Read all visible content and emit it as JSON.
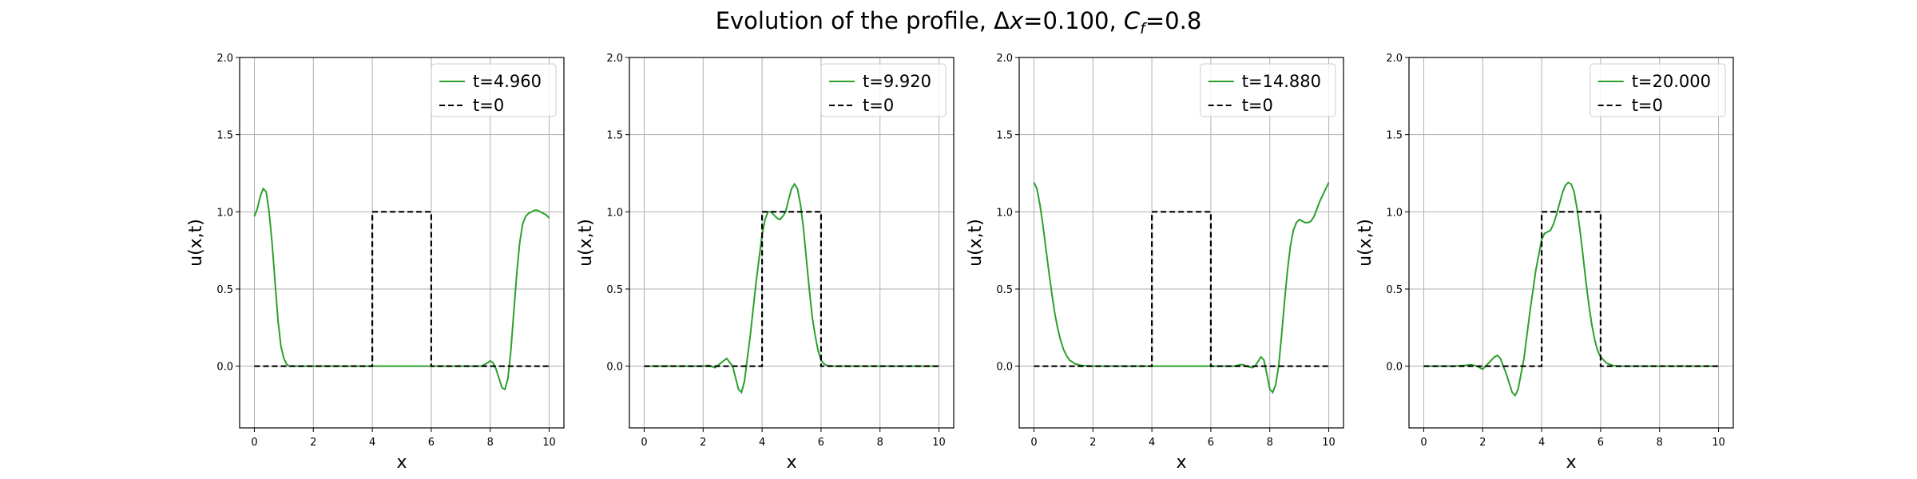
{
  "figure": {
    "suptitle_prefix": "Evolution of the profile, ",
    "dx_symbol": "Δ",
    "dx_var": "x",
    "dx_value": "=0.100, ",
    "cf_var": "C",
    "cf_sub": "f",
    "cf_value": "=0.8"
  },
  "chart_data": [
    {
      "type": "line",
      "xlabel": "x",
      "ylabel": "u(x,t)",
      "xlim": [
        -0.5,
        10.5
      ],
      "ylim": [
        -0.4,
        2.0
      ],
      "xticks": [
        0,
        2,
        4,
        6,
        8,
        10
      ],
      "xtick_labels": [
        "0",
        "2",
        "4",
        "6",
        "8",
        "10"
      ],
      "yticks": [
        0.0,
        0.5,
        1.0,
        1.5,
        2.0
      ],
      "ytick_labels": [
        "0.0",
        "0.5",
        "1.0",
        "1.5",
        "2.0"
      ],
      "grid": true,
      "legend_position": "top-right",
      "series": [
        {
          "name": "t=4.960",
          "color": "#2ca02c",
          "style": "solid",
          "x": [
            0,
            0.1,
            0.2,
            0.3,
            0.4,
            0.5,
            0.6,
            0.7,
            0.8,
            0.9,
            1.0,
            1.1,
            1.2,
            1.3,
            1.5,
            2.0,
            4.0,
            6.0,
            7.5,
            7.7,
            7.9,
            8.0,
            8.1,
            8.2,
            8.3,
            8.4,
            8.5,
            8.6,
            8.7,
            8.8,
            8.9,
            9.0,
            9.1,
            9.2,
            9.3,
            9.4,
            9.5,
            9.6,
            9.7,
            9.8,
            9.9,
            10.0
          ],
          "y": [
            0.97,
            1.02,
            1.1,
            1.15,
            1.13,
            1.0,
            0.8,
            0.55,
            0.3,
            0.13,
            0.05,
            0.01,
            0.0,
            0.0,
            0.0,
            0.0,
            0.0,
            0.0,
            0.0,
            0.0,
            0.02,
            0.035,
            0.02,
            -0.02,
            -0.08,
            -0.14,
            -0.15,
            -0.08,
            0.1,
            0.35,
            0.6,
            0.8,
            0.92,
            0.97,
            0.99,
            1.0,
            1.01,
            1.01,
            1.0,
            0.99,
            0.98,
            0.96
          ]
        },
        {
          "name": "t=0",
          "color": "#000000",
          "style": "dashed",
          "x": [
            0,
            4.0,
            4.0,
            6.0,
            6.0,
            10.0
          ],
          "y": [
            0,
            0,
            1,
            1,
            0,
            0
          ]
        }
      ]
    },
    {
      "type": "line",
      "xlabel": "x",
      "ylabel": "u(x,t)",
      "xlim": [
        -0.5,
        10.5
      ],
      "ylim": [
        -0.4,
        2.0
      ],
      "xticks": [
        0,
        2,
        4,
        6,
        8,
        10
      ],
      "xtick_labels": [
        "0",
        "2",
        "4",
        "6",
        "8",
        "10"
      ],
      "yticks": [
        0.0,
        0.5,
        1.0,
        1.5,
        2.0
      ],
      "ytick_labels": [
        "0.0",
        "0.5",
        "1.0",
        "1.5",
        "2.0"
      ],
      "grid": true,
      "legend_position": "top-right",
      "series": [
        {
          "name": "t=9.920",
          "color": "#2ca02c",
          "style": "solid",
          "x": [
            0,
            1.5,
            2.0,
            2.2,
            2.4,
            2.6,
            2.8,
            3.0,
            3.2,
            3.3,
            3.4,
            3.6,
            3.8,
            4.0,
            4.1,
            4.2,
            4.3,
            4.4,
            4.5,
            4.6,
            4.7,
            4.8,
            4.9,
            5.0,
            5.1,
            5.2,
            5.3,
            5.4,
            5.5,
            5.6,
            5.7,
            5.8,
            5.9,
            6.0,
            6.1,
            6.2,
            6.4,
            6.6,
            7.0,
            10.0
          ],
          "y": [
            0,
            0,
            0.0,
            0.005,
            -0.01,
            0.02,
            0.05,
            0.0,
            -0.15,
            -0.17,
            -0.1,
            0.2,
            0.55,
            0.85,
            0.95,
            1.0,
            1.0,
            0.98,
            0.96,
            0.95,
            0.97,
            1.0,
            1.08,
            1.15,
            1.18,
            1.15,
            1.05,
            0.9,
            0.7,
            0.5,
            0.32,
            0.2,
            0.1,
            0.04,
            0.015,
            0.005,
            0.0,
            0.0,
            0.0,
            0.0
          ]
        },
        {
          "name": "t=0",
          "color": "#000000",
          "style": "dashed",
          "x": [
            0,
            4.0,
            4.0,
            6.0,
            6.0,
            10.0
          ],
          "y": [
            0,
            0,
            1,
            1,
            0,
            0
          ]
        }
      ]
    },
    {
      "type": "line",
      "xlabel": "x",
      "ylabel": "u(x,t)",
      "xlim": [
        -0.5,
        10.5
      ],
      "ylim": [
        -0.4,
        2.0
      ],
      "xticks": [
        0,
        2,
        4,
        6,
        8,
        10
      ],
      "xtick_labels": [
        "0",
        "2",
        "4",
        "6",
        "8",
        "10"
      ],
      "yticks": [
        0.0,
        0.5,
        1.0,
        1.5,
        2.0
      ],
      "ytick_labels": [
        "0.0",
        "0.5",
        "1.0",
        "1.5",
        "2.0"
      ],
      "grid": true,
      "legend_position": "top-right",
      "series": [
        {
          "name": "t=14.880",
          "color": "#2ca02c",
          "style": "solid",
          "x": [
            0,
            0.1,
            0.2,
            0.3,
            0.4,
            0.5,
            0.6,
            0.7,
            0.8,
            0.9,
            1.0,
            1.1,
            1.2,
            1.4,
            1.6,
            2.0,
            4.0,
            6.0,
            6.8,
            7.0,
            7.1,
            7.2,
            7.4,
            7.5,
            7.6,
            7.7,
            7.8,
            7.9,
            8.0,
            8.1,
            8.2,
            8.3,
            8.4,
            8.5,
            8.6,
            8.7,
            8.8,
            8.9,
            9.0,
            9.1,
            9.2,
            9.3,
            9.4,
            9.5,
            9.6,
            9.7,
            9.8,
            9.9,
            10.0
          ],
          "y": [
            1.19,
            1.15,
            1.05,
            0.92,
            0.77,
            0.62,
            0.48,
            0.35,
            0.25,
            0.17,
            0.11,
            0.07,
            0.04,
            0.015,
            0.005,
            0.0,
            0.0,
            0.0,
            0.0,
            0.01,
            0.01,
            0.0,
            -0.01,
            0.0,
            0.03,
            0.06,
            0.04,
            -0.05,
            -0.15,
            -0.17,
            -0.12,
            0.0,
            0.2,
            0.42,
            0.62,
            0.78,
            0.88,
            0.93,
            0.95,
            0.94,
            0.93,
            0.93,
            0.94,
            0.97,
            1.02,
            1.07,
            1.11,
            1.15,
            1.19
          ]
        },
        {
          "name": "t=0",
          "color": "#000000",
          "style": "dashed",
          "x": [
            0,
            4.0,
            4.0,
            6.0,
            6.0,
            10.0
          ],
          "y": [
            0,
            0,
            1,
            1,
            0,
            0
          ]
        }
      ]
    },
    {
      "type": "line",
      "xlabel": "x",
      "ylabel": "u(x,t)",
      "xlim": [
        -0.5,
        10.5
      ],
      "ylim": [
        -0.4,
        2.0
      ],
      "xticks": [
        0,
        2,
        4,
        6,
        8,
        10
      ],
      "xtick_labels": [
        "0",
        "2",
        "4",
        "6",
        "8",
        "10"
      ],
      "yticks": [
        0.0,
        0.5,
        1.0,
        1.5,
        2.0
      ],
      "ytick_labels": [
        "0.0",
        "0.5",
        "1.0",
        "1.5",
        "2.0"
      ],
      "grid": true,
      "legend_position": "top-right",
      "series": [
        {
          "name": "t=20.000",
          "color": "#2ca02c",
          "style": "solid",
          "x": [
            0,
            1.0,
            1.4,
            1.6,
            1.8,
            2.0,
            2.2,
            2.4,
            2.5,
            2.6,
            2.8,
            3.0,
            3.1,
            3.2,
            3.4,
            3.6,
            3.8,
            4.0,
            4.1,
            4.2,
            4.3,
            4.4,
            4.5,
            4.6,
            4.7,
            4.8,
            4.9,
            5.0,
            5.1,
            5.2,
            5.3,
            5.4,
            5.5,
            5.6,
            5.7,
            5.8,
            5.9,
            6.0,
            6.2,
            6.4,
            6.6,
            7.0,
            10.0
          ],
          "y": [
            0,
            0,
            0.005,
            0.01,
            0.0,
            -0.02,
            0.02,
            0.06,
            0.07,
            0.05,
            -0.05,
            -0.17,
            -0.19,
            -0.15,
            0.05,
            0.35,
            0.62,
            0.82,
            0.86,
            0.87,
            0.88,
            0.92,
            0.98,
            1.05,
            1.12,
            1.17,
            1.19,
            1.18,
            1.13,
            1.02,
            0.88,
            0.72,
            0.55,
            0.4,
            0.27,
            0.17,
            0.1,
            0.06,
            0.02,
            0.005,
            0.0,
            0.0,
            0.0
          ]
        },
        {
          "name": "t=0",
          "color": "#000000",
          "style": "dashed",
          "x": [
            0,
            4.0,
            4.0,
            6.0,
            6.0,
            10.0
          ],
          "y": [
            0,
            0,
            1,
            1,
            0,
            0
          ]
        }
      ]
    }
  ]
}
